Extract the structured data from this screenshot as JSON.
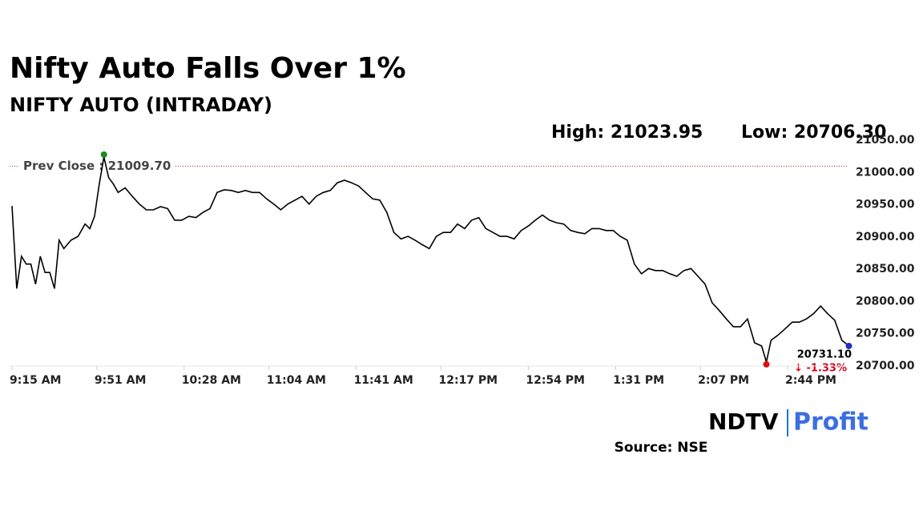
{
  "chart_data": {
    "type": "line",
    "title": "Nifty Auto Falls Over 1%",
    "subtitle": "NIFTY AUTO (INTRADAY)",
    "high_text": "High: 21023.95",
    "low_text": "Low: 20706.30",
    "prev_close": {
      "value": 21009.7,
      "label": "Prev Close : 21009.70"
    },
    "last_label": "20731.10",
    "change_label": "↓ -1.33%",
    "brand": [
      "NDTV",
      "Profit"
    ],
    "source": "Source: NSE",
    "x": [
      "9:15 AM",
      "9:17 AM",
      "9:19 AM",
      "9:21 AM",
      "9:23 AM",
      "9:25 AM",
      "9:27 AM",
      "9:29 AM",
      "9:31 AM",
      "9:33 AM",
      "9:35 AM",
      "9:37 AM",
      "9:40 AM",
      "9:43 AM",
      "9:46 AM",
      "9:48 AM",
      "9:50 AM",
      "9:52 AM",
      "9:54 AM",
      "9:56 AM",
      "9:58 AM",
      "10:00 AM",
      "10:03 AM",
      "10:06 AM",
      "10:09 AM",
      "10:12 AM",
      "10:15 AM",
      "10:18 AM",
      "10:21 AM",
      "10:24 AM",
      "10:27 AM",
      "10:30 AM",
      "10:33 AM",
      "10:36 AM",
      "10:39 AM",
      "10:42 AM",
      "10:45 AM",
      "10:48 AM",
      "10:51 AM",
      "10:54 AM",
      "10:57 AM",
      "11:00 AM",
      "11:03 AM",
      "11:06 AM",
      "11:09 AM",
      "11:12 AM",
      "11:15 AM",
      "11:18 AM",
      "11:21 AM",
      "11:24 AM",
      "11:27 AM",
      "11:30 AM",
      "11:33 AM",
      "11:36 AM",
      "11:39 AM",
      "11:42 AM",
      "11:45 AM",
      "11:48 AM",
      "11:51 AM",
      "11:54 AM",
      "11:57 AM",
      "12:00 PM",
      "12:03 PM",
      "12:06 PM",
      "12:09 PM",
      "12:12 PM",
      "12:15 PM",
      "12:18 PM",
      "12:21 PM",
      "12:24 PM",
      "12:27 PM",
      "12:30 PM",
      "12:33 PM",
      "12:36 PM",
      "12:39 PM",
      "12:42 PM",
      "12:45 PM",
      "12:48 PM",
      "12:51 PM",
      "12:54 PM",
      "12:57 PM",
      "1:00 PM",
      "1:03 PM",
      "1:06 PM",
      "1:09 PM",
      "1:12 PM",
      "1:15 PM",
      "1:18 PM",
      "1:21 PM",
      "1:24 PM",
      "1:27 PM",
      "1:30 PM",
      "1:33 PM",
      "1:36 PM",
      "1:39 PM",
      "1:42 PM",
      "1:45 PM",
      "1:48 PM",
      "1:51 PM",
      "1:54 PM",
      "1:57 PM",
      "2:00 PM",
      "2:03 PM",
      "2:06 PM",
      "2:09 PM",
      "2:12 PM",
      "2:15 PM",
      "2:18 PM",
      "2:21 PM",
      "2:24 PM",
      "2:27 PM",
      "2:30 PM",
      "2:33 PM",
      "2:35 PM",
      "2:37 PM",
      "2:40 PM",
      "2:43 PM",
      "2:46 PM",
      "2:49 PM",
      "2:52 PM",
      "2:55 PM",
      "2:58 PM",
      "3:01 PM",
      "3:04 PM",
      "3:07 PM",
      "3:10 PM"
    ],
    "series": [
      {
        "name": "NIFTY AUTO",
        "color": "#000000",
        "values": [
          20948,
          20820,
          20870,
          20858,
          20858,
          20827,
          20870,
          20845,
          20845,
          20820,
          20895,
          20882,
          20895,
          20901,
          20920,
          20913,
          20932,
          20982,
          21023.95,
          20992,
          20982,
          20969,
          20976,
          20963,
          20951,
          20942,
          20942,
          20947,
          20944,
          20926,
          20926,
          20932,
          20930,
          20938,
          20944,
          20969,
          20973,
          20972,
          20969,
          20972,
          20969,
          20969,
          20959,
          20951,
          20942,
          20951,
          20957,
          20963,
          20951,
          20963,
          20969,
          20972,
          20984,
          20988,
          20984,
          20979,
          20969,
          20959,
          20957,
          20938,
          20907,
          20897,
          20901,
          20895,
          20888,
          20882,
          20901,
          20907,
          20907,
          20920,
          20913,
          20926,
          20930,
          20913,
          20907,
          20901,
          20901,
          20897,
          20910,
          20917,
          20926,
          20934,
          20926,
          20922,
          20920,
          20910,
          20907,
          20905,
          20913,
          20913,
          20910,
          20910,
          20901,
          20895,
          20858,
          20843,
          20851,
          20848,
          20848,
          20843,
          20839,
          20848,
          20851,
          20839,
          20827,
          20798,
          20786,
          20773,
          20761,
          20761,
          20773,
          20736,
          20731,
          20706.3,
          20740,
          20748,
          20758,
          20768,
          20768,
          20773,
          20781,
          20793,
          20781,
          20771,
          20740,
          20731.1
        ]
      }
    ],
    "xticks": [
      "9:15 AM",
      "9:51 AM",
      "10:28 AM",
      "11:04 AM",
      "11:41 AM",
      "12:17 PM",
      "12:54 PM",
      "1:31 PM",
      "2:07 PM",
      "2:44 PM"
    ],
    "ylim": [
      20700,
      21050
    ],
    "yticks": [
      {
        "value": 20700,
        "label": "20700.00"
      },
      {
        "value": 20750,
        "label": "20750.00"
      },
      {
        "value": 20800,
        "label": "20800.00"
      },
      {
        "value": 20850,
        "label": "20850.00"
      },
      {
        "value": 20900,
        "label": "20900.00"
      },
      {
        "value": 20950,
        "label": "20950.00"
      },
      {
        "value": 21000,
        "label": "21000.00"
      },
      {
        "value": 21050,
        "label": "21050.00"
      }
    ]
  }
}
